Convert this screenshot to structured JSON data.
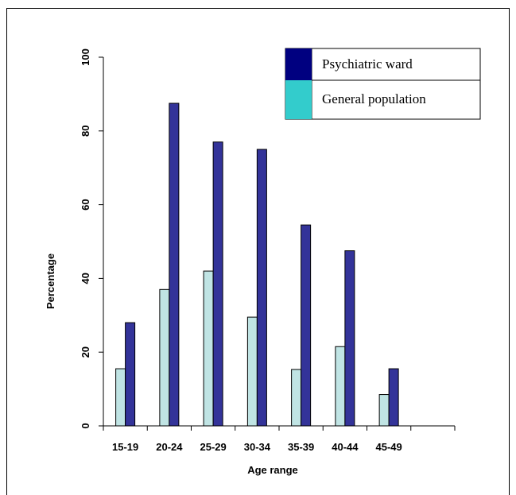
{
  "chart_data": {
    "type": "bar",
    "title": "",
    "xlabel": "Age range",
    "ylabel": "Percentage",
    "ylim": [
      0,
      100
    ],
    "yticks": [
      0,
      20,
      40,
      60,
      80,
      100
    ],
    "categories": [
      "15-19",
      "20-24",
      "25-29",
      "30-34",
      "35-39",
      "40-44",
      "45-49"
    ],
    "series": [
      {
        "name": "General population",
        "color": "#c0e4e4",
        "values": [
          15.5,
          37,
          42,
          29.5,
          15.3,
          21.5,
          8.5
        ]
      },
      {
        "name": "Psychiatric ward",
        "color": "#333399",
        "values": [
          28,
          87.5,
          77,
          75,
          54.5,
          47.5,
          15.5
        ]
      }
    ],
    "legend": {
      "placement": "top-right",
      "entries": [
        {
          "label": "Psychiatric ward",
          "color": "#000080"
        },
        {
          "label": "General population",
          "color": "#33cccc"
        }
      ]
    },
    "grid": false
  }
}
